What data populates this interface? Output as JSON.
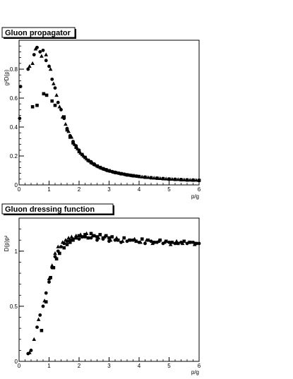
{
  "chart_data": [
    {
      "type": "scatter",
      "title": "Gluon propagator",
      "xlabel": "p/g",
      "ylabel": "g²D(p)",
      "xlim": [
        0,
        6
      ],
      "ylim": [
        0,
        1.0
      ],
      "x_ticks": [
        "0",
        "1",
        "2",
        "3",
        "4",
        "5",
        "6"
      ],
      "y_ticks": [
        "0",
        "0.2",
        "0.4",
        "0.6",
        "0.8"
      ],
      "grid": false,
      "series": [
        {
          "marker": "circle",
          "x": [
            0.02,
            0.05,
            0.3,
            0.5,
            0.6,
            0.7,
            0.8,
            0.9,
            1.0,
            1.1,
            1.2,
            1.3,
            1.4,
            1.5,
            1.6,
            1.7,
            1.8,
            1.9,
            2.0,
            2.1,
            2.2,
            2.3,
            2.4,
            2.5,
            2.6,
            2.7,
            2.8,
            2.9,
            3.0,
            3.1,
            3.2,
            3.3,
            3.4,
            3.5,
            3.6,
            3.7,
            3.8,
            3.9,
            4.0,
            4.2,
            4.4,
            4.6,
            4.8,
            5.0,
            5.2,
            5.4,
            5.6,
            5.8,
            6.0
          ],
          "y": [
            0.46,
            0.68,
            0.8,
            0.9,
            0.95,
            0.92,
            0.93,
            0.86,
            0.82,
            0.73,
            0.67,
            0.57,
            0.52,
            0.46,
            0.39,
            0.34,
            0.3,
            0.27,
            0.24,
            0.21,
            0.19,
            0.17,
            0.16,
            0.145,
            0.13,
            0.12,
            0.112,
            0.105,
            0.098,
            0.092,
            0.087,
            0.082,
            0.078,
            0.074,
            0.07,
            0.067,
            0.064,
            0.061,
            0.058,
            0.054,
            0.05,
            0.047,
            0.044,
            0.041,
            0.039,
            0.037,
            0.035,
            0.034,
            0.032
          ]
        },
        {
          "marker": "triangle",
          "x": [
            0.35,
            0.45,
            0.55,
            0.75,
            0.9,
            1.05,
            1.15,
            1.25,
            1.35,
            1.45,
            1.55,
            1.65,
            1.75,
            1.85,
            1.95,
            2.05,
            2.15,
            2.25,
            2.35,
            2.45,
            2.55,
            2.65,
            2.75,
            2.85,
            2.95,
            3.05,
            3.15,
            3.25,
            3.35,
            3.45,
            3.55,
            3.65,
            3.75,
            3.85,
            3.95,
            4.1,
            4.3,
            4.5,
            4.7,
            4.9,
            5.1,
            5.3,
            5.5,
            5.7,
            5.9
          ],
          "y": [
            0.82,
            0.84,
            0.94,
            0.89,
            0.9,
            0.8,
            0.7,
            0.62,
            0.54,
            0.47,
            0.42,
            0.37,
            0.33,
            0.28,
            0.25,
            0.22,
            0.2,
            0.18,
            0.165,
            0.15,
            0.138,
            0.126,
            0.116,
            0.108,
            0.1,
            0.095,
            0.089,
            0.084,
            0.08,
            0.076,
            0.072,
            0.068,
            0.065,
            0.062,
            0.06,
            0.056,
            0.052,
            0.048,
            0.045,
            0.042,
            0.04,
            0.038,
            0.036,
            0.034,
            0.033
          ]
        },
        {
          "marker": "square",
          "x": [
            0.45,
            0.6,
            0.82,
            0.92,
            1.1,
            1.2,
            1.5,
            1.6,
            1.7,
            1.8,
            1.9,
            2.0,
            2.1,
            2.2,
            2.3,
            2.4,
            2.5,
            2.6,
            2.7,
            2.8,
            2.9,
            3.0,
            3.2,
            3.4,
            3.6,
            3.8,
            4.0,
            4.2,
            4.4,
            4.6,
            4.8,
            5.0,
            5.2,
            5.4,
            5.6,
            5.8,
            6.0
          ],
          "y": [
            0.54,
            0.55,
            0.63,
            0.62,
            0.58,
            0.55,
            0.47,
            0.38,
            0.33,
            0.29,
            0.26,
            0.23,
            0.21,
            0.19,
            0.17,
            0.155,
            0.142,
            0.131,
            0.121,
            0.112,
            0.105,
            0.098,
            0.086,
            0.077,
            0.069,
            0.063,
            0.058,
            0.053,
            0.049,
            0.046,
            0.043,
            0.04,
            0.038,
            0.036,
            0.034,
            0.033,
            0.031
          ]
        }
      ]
    },
    {
      "type": "scatter",
      "title": "Gluon dressing function",
      "xlabel": "p/g",
      "ylabel": "D(p)p²",
      "xlim": [
        0,
        6
      ],
      "ylim": [
        0,
        1.3
      ],
      "x_ticks": [
        "0",
        "1",
        "2",
        "3",
        "4",
        "5",
        "6"
      ],
      "y_ticks": [
        "0",
        "0.5",
        "1"
      ],
      "grid": false,
      "series": [
        {
          "marker": "circle",
          "x": [
            0.3,
            0.4,
            0.6,
            0.7,
            0.8,
            0.9,
            1.0,
            1.1,
            1.2,
            1.3,
            1.4,
            1.5,
            1.6,
            1.7,
            1.8,
            1.9,
            2.0,
            2.2,
            2.4,
            2.6,
            2.8,
            3.0,
            3.2,
            3.4,
            3.6,
            3.8,
            4.0,
            4.2,
            4.4,
            4.6,
            4.8,
            5.0,
            5.2,
            5.4,
            5.6,
            5.8,
            6.0
          ],
          "y": [
            0.07,
            0.1,
            0.31,
            0.42,
            0.5,
            0.62,
            0.72,
            0.85,
            0.95,
            1.0,
            1.04,
            1.07,
            1.09,
            1.1,
            1.11,
            1.12,
            1.11,
            1.13,
            1.12,
            1.1,
            1.11,
            1.09,
            1.1,
            1.08,
            1.09,
            1.1,
            1.08,
            1.07,
            1.09,
            1.08,
            1.07,
            1.08,
            1.07,
            1.08,
            1.07,
            1.08,
            1.07
          ]
        },
        {
          "marker": "triangle",
          "x": [
            0.35,
            0.5,
            0.65,
            0.85,
            1.0,
            1.1,
            1.2,
            1.3,
            1.45,
            1.55,
            1.65,
            1.75,
            1.9,
            2.05,
            2.25,
            2.45,
            2.65,
            2.85,
            3.05,
            3.25,
            3.45,
            3.65,
            3.85,
            4.05,
            4.25,
            4.45,
            4.65,
            4.85,
            5.05,
            5.25,
            5.45,
            5.65,
            5.85
          ],
          "y": [
            0.08,
            0.2,
            0.38,
            0.55,
            0.75,
            0.87,
            0.98,
            1.04,
            1.08,
            1.1,
            1.12,
            1.13,
            1.14,
            1.15,
            1.16,
            1.14,
            1.12,
            1.13,
            1.1,
            1.12,
            1.09,
            1.1,
            1.11,
            1.08,
            1.1,
            1.07,
            1.09,
            1.08,
            1.06,
            1.09,
            1.07,
            1.08,
            1.06
          ]
        },
        {
          "marker": "square",
          "x": [
            0.75,
            0.9,
            1.05,
            1.15,
            1.25,
            1.35,
            1.5,
            1.6,
            1.7,
            1.8,
            1.9,
            2.0,
            2.1,
            2.2,
            2.3,
            2.4,
            2.5,
            2.6,
            2.7,
            2.8,
            2.9,
            3.0,
            3.1,
            3.3,
            3.5,
            3.7,
            3.9,
            4.1,
            4.3,
            4.5,
            4.7,
            4.9,
            5.1,
            5.3,
            5.5,
            5.7,
            5.9
          ],
          "y": [
            0.28,
            0.54,
            0.76,
            0.85,
            0.93,
            0.98,
            1.03,
            1.06,
            1.08,
            1.1,
            1.12,
            1.14,
            1.13,
            1.15,
            1.12,
            1.16,
            1.14,
            1.13,
            1.15,
            1.12,
            1.14,
            1.12,
            1.13,
            1.1,
            1.12,
            1.1,
            1.09,
            1.11,
            1.1,
            1.08,
            1.1,
            1.09,
            1.08,
            1.07,
            1.09,
            1.08,
            1.07
          ]
        }
      ]
    }
  ]
}
